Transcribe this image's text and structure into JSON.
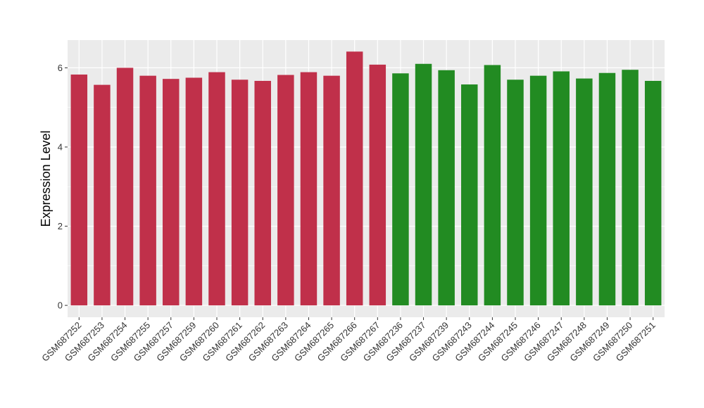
{
  "chart_data": {
    "type": "bar",
    "ylabel": "Expression Level",
    "xlabel": "",
    "ylim": [
      -0.3,
      6.7
    ],
    "yticks": [
      0,
      2,
      4,
      6
    ],
    "grid": true,
    "legend": "none",
    "colors": {
      "group_1": "#c0304a",
      "group_2": "#228b22",
      "panel": "#ebebeb",
      "gridline": "#ffffff"
    },
    "categories": [
      "GSM687252",
      "GSM687253",
      "GSM687254",
      "GSM687255",
      "GSM687257",
      "GSM687259",
      "GSM687260",
      "GSM687261",
      "GSM687262",
      "GSM687263",
      "GSM687264",
      "GSM687265",
      "GSM687266",
      "GSM687267",
      "GSM687236",
      "GSM687237",
      "GSM687239",
      "GSM687243",
      "GSM687244",
      "GSM687245",
      "GSM687246",
      "GSM687247",
      "GSM687248",
      "GSM687249",
      "GSM687250",
      "GSM687251"
    ],
    "values": [
      5.83,
      5.57,
      6.0,
      5.8,
      5.72,
      5.75,
      5.89,
      5.7,
      5.67,
      5.82,
      5.89,
      5.8,
      6.41,
      6.08,
      5.86,
      6.1,
      5.94,
      5.58,
      6.07,
      5.7,
      5.8,
      5.91,
      5.73,
      5.87,
      5.95,
      5.67
    ],
    "groups": [
      "group_1",
      "group_1",
      "group_1",
      "group_1",
      "group_1",
      "group_1",
      "group_1",
      "group_1",
      "group_1",
      "group_1",
      "group_1",
      "group_1",
      "group_1",
      "group_1",
      "group_2",
      "group_2",
      "group_2",
      "group_2",
      "group_2",
      "group_2",
      "group_2",
      "group_2",
      "group_2",
      "group_2",
      "group_2",
      "group_2"
    ]
  }
}
